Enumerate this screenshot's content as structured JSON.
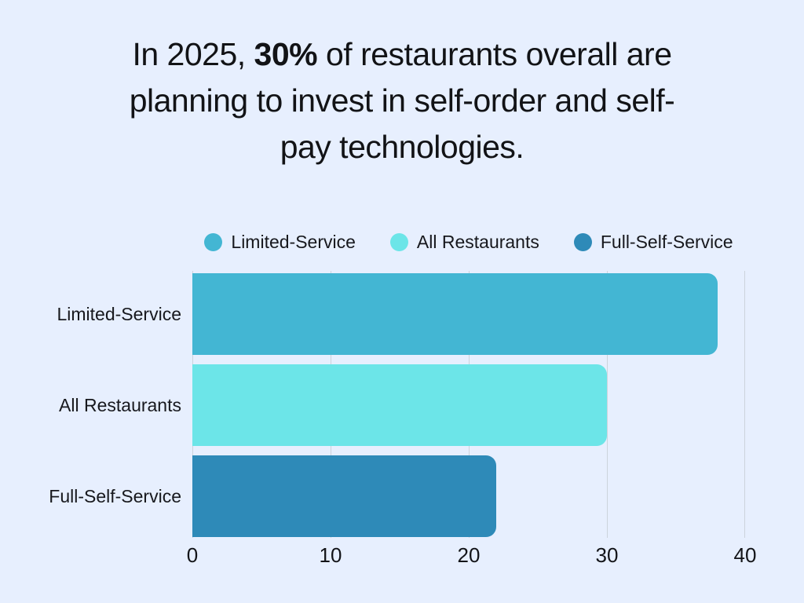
{
  "background_color": "#e7effe",
  "title": {
    "text": "In 2025, 30% of restaurants overall are planning to invest in self-order and self-pay technologies.",
    "lines": [
      [
        {
          "t": "In 2025, "
        },
        {
          "t": "30%",
          "bold": true
        },
        {
          "t": " of restaurants overall are"
        }
      ],
      [
        {
          "t": "planning to invest in self-order and self-"
        }
      ],
      [
        {
          "t": "pay technologies."
        }
      ]
    ]
  },
  "chart_data": {
    "type": "bar",
    "orientation": "horizontal",
    "title": "In 2025, 30% of restaurants overall are planning to invest in self-order and self-pay technologies.",
    "categories": [
      "Limited-Service",
      "All Restaurants",
      "Full-Self-Service"
    ],
    "values": [
      38,
      30,
      22
    ],
    "colors": [
      "#43b6d3",
      "#6ce5e8",
      "#2e8ab8"
    ],
    "xlim": [
      0,
      40
    ],
    "xticks": [
      0,
      10,
      20,
      30,
      40
    ],
    "grid": true,
    "gridline_color": "#ccd3dc",
    "legend_position": "top",
    "legend": [
      {
        "label": "Limited-Service",
        "color": "#43b6d3"
      },
      {
        "label": "All Restaurants",
        "color": "#6ce5e8"
      },
      {
        "label": "Full-Self-Service",
        "color": "#2e8ab8"
      }
    ]
  }
}
